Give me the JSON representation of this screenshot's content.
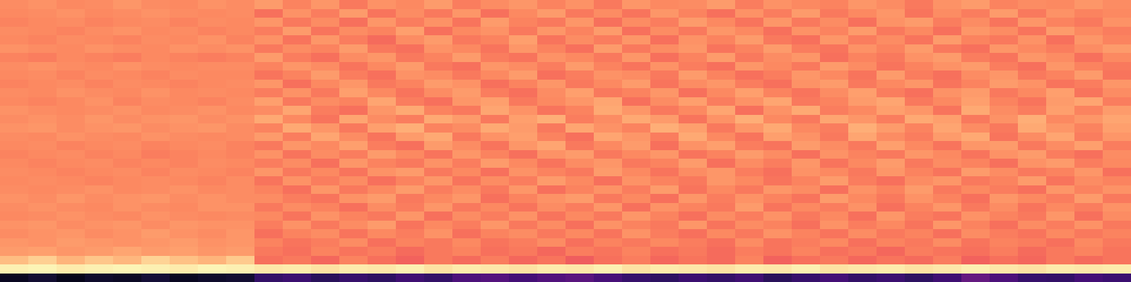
{
  "chart_data": {
    "type": "heatmap",
    "color": "magma",
    "tick_labels": false,
    "zlim": [
      0,
      1
    ],
    "z": [
      [
        0.76,
        0.77,
        0.75,
        0.76,
        0.78,
        0.76,
        0.75,
        0.77,
        0.76,
        0.79,
        0.74,
        0.78,
        0.72,
        0.77,
        0.75,
        0.79,
        0.73,
        0.76,
        0.78,
        0.74,
        0.77,
        0.72,
        0.78,
        0.75,
        0.76,
        0.79,
        0.73,
        0.77,
        0.75,
        0.74,
        0.78,
        0.76,
        0.72,
        0.77,
        0.79,
        0.74,
        0.76,
        0.75,
        0.78,
        0.76
      ],
      [
        0.75,
        0.76,
        0.77,
        0.75,
        0.76,
        0.77,
        0.76,
        0.75,
        0.76,
        0.7,
        0.77,
        0.73,
        0.79,
        0.71,
        0.76,
        0.72,
        0.78,
        0.7,
        0.75,
        0.79,
        0.72,
        0.76,
        0.71,
        0.78,
        0.74,
        0.7,
        0.77,
        0.73,
        0.79,
        0.72,
        0.75,
        0.78,
        0.71,
        0.76,
        0.73,
        0.79,
        0.72,
        0.77,
        0.74,
        0.75
      ],
      [
        0.74,
        0.75,
        0.76,
        0.74,
        0.75,
        0.76,
        0.74,
        0.76,
        0.75,
        0.78,
        0.72,
        0.76,
        0.7,
        0.78,
        0.73,
        0.77,
        0.71,
        0.79,
        0.74,
        0.72,
        0.78,
        0.7,
        0.76,
        0.73,
        0.79,
        0.75,
        0.71,
        0.78,
        0.72,
        0.76,
        0.7,
        0.77,
        0.79,
        0.73,
        0.76,
        0.71,
        0.78,
        0.74,
        0.72,
        0.77
      ],
      [
        0.76,
        0.75,
        0.74,
        0.76,
        0.77,
        0.75,
        0.76,
        0.74,
        0.75,
        0.73,
        0.79,
        0.71,
        0.76,
        0.74,
        0.8,
        0.7,
        0.75,
        0.77,
        0.72,
        0.78,
        0.74,
        0.79,
        0.7,
        0.76,
        0.72,
        0.78,
        0.75,
        0.7,
        0.77,
        0.74,
        0.79,
        0.72,
        0.75,
        0.7,
        0.78,
        0.76,
        0.71,
        0.79,
        0.75,
        0.73
      ],
      [
        0.75,
        0.74,
        0.76,
        0.75,
        0.74,
        0.76,
        0.75,
        0.77,
        0.74,
        0.77,
        0.71,
        0.78,
        0.73,
        0.69,
        0.76,
        0.79,
        0.72,
        0.74,
        0.8,
        0.71,
        0.76,
        0.73,
        0.78,
        0.7,
        0.77,
        0.74,
        0.79,
        0.72,
        0.7,
        0.78,
        0.73,
        0.76,
        0.71,
        0.79,
        0.74,
        0.72,
        0.77,
        0.7,
        0.78,
        0.74
      ],
      [
        0.77,
        0.76,
        0.75,
        0.77,
        0.76,
        0.75,
        0.77,
        0.76,
        0.77,
        0.72,
        0.76,
        0.74,
        0.79,
        0.72,
        0.7,
        0.77,
        0.75,
        0.71,
        0.78,
        0.74,
        0.7,
        0.79,
        0.72,
        0.76,
        0.78,
        0.71,
        0.74,
        0.79,
        0.73,
        0.71,
        0.77,
        0.74,
        0.79,
        0.72,
        0.7,
        0.78,
        0.75,
        0.73,
        0.76,
        0.79
      ],
      [
        0.74,
        0.73,
        0.75,
        0.74,
        0.73,
        0.75,
        0.74,
        0.73,
        0.74,
        0.79,
        0.73,
        0.7,
        0.76,
        0.78,
        0.72,
        0.74,
        0.79,
        0.73,
        0.71,
        0.77,
        0.75,
        0.72,
        0.78,
        0.7,
        0.74,
        0.79,
        0.72,
        0.76,
        0.78,
        0.7,
        0.74,
        0.72,
        0.77,
        0.79,
        0.73,
        0.71,
        0.78,
        0.76,
        0.7,
        0.75
      ],
      [
        0.76,
        0.77,
        0.76,
        0.75,
        0.77,
        0.76,
        0.75,
        0.76,
        0.76,
        0.74,
        0.78,
        0.76,
        0.71,
        0.75,
        0.79,
        0.72,
        0.7,
        0.78,
        0.76,
        0.73,
        0.79,
        0.74,
        0.71,
        0.77,
        0.73,
        0.7,
        0.78,
        0.75,
        0.72,
        0.79,
        0.76,
        0.71,
        0.74,
        0.77,
        0.79,
        0.73,
        0.7,
        0.78,
        0.74,
        0.72
      ],
      [
        0.75,
        0.76,
        0.74,
        0.76,
        0.75,
        0.74,
        0.76,
        0.75,
        0.75,
        0.71,
        0.74,
        0.79,
        0.73,
        0.7,
        0.77,
        0.76,
        0.72,
        0.75,
        0.79,
        0.7,
        0.73,
        0.77,
        0.76,
        0.72,
        0.79,
        0.74,
        0.7,
        0.73,
        0.78,
        0.75,
        0.71,
        0.79,
        0.73,
        0.7,
        0.76,
        0.78,
        0.72,
        0.74,
        0.79,
        0.71
      ],
      [
        0.74,
        0.75,
        0.76,
        0.74,
        0.76,
        0.75,
        0.74,
        0.75,
        0.76,
        0.78,
        0.7,
        0.75,
        0.78,
        0.72,
        0.74,
        0.79,
        0.77,
        0.7,
        0.74,
        0.78,
        0.72,
        0.75,
        0.79,
        0.71,
        0.76,
        0.78,
        0.73,
        0.7,
        0.77,
        0.79,
        0.72,
        0.75,
        0.78,
        0.71,
        0.74,
        0.79,
        0.77,
        0.71,
        0.73,
        0.78
      ],
      [
        0.76,
        0.75,
        0.77,
        0.76,
        0.75,
        0.77,
        0.75,
        0.76,
        0.75,
        0.73,
        0.77,
        0.72,
        0.8,
        0.75,
        0.71,
        0.76,
        0.79,
        0.73,
        0.7,
        0.76,
        0.8,
        0.72,
        0.74,
        0.78,
        0.7,
        0.75,
        0.8,
        0.74,
        0.71,
        0.76,
        0.8,
        0.73,
        0.7,
        0.77,
        0.79,
        0.72,
        0.75,
        0.8,
        0.71,
        0.76
      ],
      [
        0.75,
        0.74,
        0.75,
        0.77,
        0.74,
        0.76,
        0.75,
        0.74,
        0.76,
        0.8,
        0.72,
        0.76,
        0.74,
        0.81,
        0.73,
        0.7,
        0.78,
        0.8,
        0.72,
        0.75,
        0.78,
        0.81,
        0.7,
        0.76,
        0.8,
        0.73,
        0.77,
        0.81,
        0.72,
        0.74,
        0.79,
        0.81,
        0.72,
        0.75,
        0.8,
        0.74,
        0.71,
        0.79,
        0.81,
        0.73
      ],
      [
        0.77,
        0.76,
        0.75,
        0.76,
        0.77,
        0.75,
        0.76,
        0.77,
        0.75,
        0.76,
        0.81,
        0.73,
        0.7,
        0.78,
        0.82,
        0.74,
        0.72,
        0.81,
        0.77,
        0.71,
        0.74,
        0.82,
        0.78,
        0.72,
        0.75,
        0.81,
        0.7,
        0.77,
        0.82,
        0.73,
        0.75,
        0.8,
        0.78,
        0.71,
        0.82,
        0.76,
        0.73,
        0.8,
        0.74,
        0.79
      ],
      [
        0.76,
        0.77,
        0.76,
        0.78,
        0.76,
        0.77,
        0.78,
        0.76,
        0.77,
        0.82,
        0.75,
        0.71,
        0.81,
        0.76,
        0.73,
        0.82,
        0.79,
        0.72,
        0.8,
        0.83,
        0.73,
        0.76,
        0.82,
        0.79,
        0.71,
        0.77,
        0.83,
        0.75,
        0.72,
        0.81,
        0.78,
        0.73,
        0.82,
        0.8,
        0.72,
        0.77,
        0.83,
        0.75,
        0.78,
        0.81
      ],
      [
        0.77,
        0.78,
        0.76,
        0.77,
        0.78,
        0.76,
        0.77,
        0.78,
        0.76,
        0.74,
        0.82,
        0.78,
        0.72,
        0.8,
        0.83,
        0.74,
        0.76,
        0.82,
        0.79,
        0.72,
        0.81,
        0.77,
        0.74,
        0.83,
        0.8,
        0.72,
        0.78,
        0.82,
        0.75,
        0.73,
        0.83,
        0.79,
        0.74,
        0.81,
        0.76,
        0.72,
        0.82,
        0.78,
        0.74,
        0.8
      ],
      [
        0.76,
        0.75,
        0.77,
        0.76,
        0.75,
        0.77,
        0.76,
        0.75,
        0.76,
        0.79,
        0.73,
        0.81,
        0.76,
        0.71,
        0.79,
        0.82,
        0.72,
        0.77,
        0.8,
        0.74,
        0.7,
        0.81,
        0.78,
        0.73,
        0.82,
        0.75,
        0.71,
        0.8,
        0.77,
        0.72,
        0.81,
        0.76,
        0.73,
        0.79,
        0.82,
        0.71,
        0.76,
        0.81,
        0.73,
        0.78
      ],
      [
        0.75,
        0.76,
        0.74,
        0.75,
        0.76,
        0.74,
        0.75,
        0.76,
        0.74,
        0.72,
        0.78,
        0.75,
        0.8,
        0.73,
        0.7,
        0.79,
        0.76,
        0.71,
        0.78,
        0.81,
        0.72,
        0.75,
        0.79,
        0.7,
        0.77,
        0.8,
        0.73,
        0.71,
        0.79,
        0.76,
        0.72,
        0.8,
        0.75,
        0.71,
        0.78,
        0.79,
        0.72,
        0.76,
        0.8,
        0.73
      ],
      [
        0.74,
        0.75,
        0.76,
        0.74,
        0.75,
        0.73,
        0.74,
        0.75,
        0.74,
        0.77,
        0.71,
        0.76,
        0.73,
        0.79,
        0.75,
        0.71,
        0.78,
        0.74,
        0.7,
        0.77,
        0.79,
        0.72,
        0.75,
        0.78,
        0.71,
        0.74,
        0.79,
        0.76,
        0.7,
        0.77,
        0.74,
        0.72,
        0.78,
        0.75,
        0.71,
        0.77,
        0.79,
        0.73,
        0.7,
        0.76
      ],
      [
        0.75,
        0.74,
        0.75,
        0.76,
        0.74,
        0.75,
        0.74,
        0.76,
        0.75,
        0.73,
        0.76,
        0.7,
        0.78,
        0.74,
        0.72,
        0.77,
        0.73,
        0.79,
        0.75,
        0.71,
        0.76,
        0.78,
        0.72,
        0.74,
        0.79,
        0.7,
        0.76,
        0.73,
        0.78,
        0.71,
        0.75,
        0.79,
        0.72,
        0.76,
        0.74,
        0.7,
        0.77,
        0.79,
        0.73,
        0.75
      ],
      [
        0.76,
        0.75,
        0.74,
        0.75,
        0.76,
        0.74,
        0.76,
        0.75,
        0.74,
        0.78,
        0.72,
        0.75,
        0.71,
        0.77,
        0.79,
        0.72,
        0.75,
        0.7,
        0.77,
        0.74,
        0.72,
        0.79,
        0.75,
        0.71,
        0.76,
        0.78,
        0.73,
        0.7,
        0.77,
        0.75,
        0.72,
        0.78,
        0.74,
        0.71,
        0.79,
        0.76,
        0.72,
        0.74,
        0.78,
        0.7
      ],
      [
        0.75,
        0.76,
        0.75,
        0.74,
        0.75,
        0.76,
        0.75,
        0.74,
        0.76,
        0.71,
        0.77,
        0.73,
        0.76,
        0.7,
        0.74,
        0.78,
        0.71,
        0.76,
        0.73,
        0.79,
        0.75,
        0.7,
        0.77,
        0.74,
        0.72,
        0.78,
        0.75,
        0.71,
        0.74,
        0.79,
        0.73,
        0.7,
        0.76,
        0.78,
        0.72,
        0.74,
        0.79,
        0.71,
        0.76,
        0.74
      ],
      [
        0.76,
        0.75,
        0.76,
        0.77,
        0.75,
        0.76,
        0.77,
        0.75,
        0.76,
        0.74,
        0.7,
        0.78,
        0.72,
        0.75,
        0.79,
        0.73,
        0.76,
        0.72,
        0.78,
        0.7,
        0.74,
        0.77,
        0.73,
        0.79,
        0.71,
        0.75,
        0.72,
        0.78,
        0.76,
        0.7,
        0.77,
        0.74,
        0.79,
        0.72,
        0.75,
        0.73,
        0.7,
        0.78,
        0.74,
        0.77
      ],
      [
        0.77,
        0.76,
        0.78,
        0.76,
        0.77,
        0.78,
        0.76,
        0.77,
        0.76,
        0.76,
        0.73,
        0.71,
        0.77,
        0.79,
        0.72,
        0.75,
        0.78,
        0.7,
        0.74,
        0.77,
        0.79,
        0.72,
        0.75,
        0.7,
        0.78,
        0.73,
        0.77,
        0.74,
        0.71,
        0.79,
        0.75,
        0.72,
        0.77,
        0.74,
        0.7,
        0.78,
        0.75,
        0.73,
        0.79,
        0.72
      ],
      [
        0.76,
        0.77,
        0.76,
        0.75,
        0.77,
        0.76,
        0.75,
        0.77,
        0.77,
        0.72,
        0.76,
        0.74,
        0.7,
        0.76,
        0.73,
        0.78,
        0.72,
        0.75,
        0.71,
        0.76,
        0.73,
        0.78,
        0.7,
        0.77,
        0.74,
        0.72,
        0.79,
        0.71,
        0.75,
        0.73,
        0.77,
        0.7,
        0.74,
        0.78,
        0.72,
        0.76,
        0.71,
        0.75,
        0.73,
        0.77
      ],
      [
        0.75,
        0.76,
        0.77,
        0.76,
        0.75,
        0.77,
        0.76,
        0.75,
        0.76,
        0.75,
        0.71,
        0.77,
        0.74,
        0.72,
        0.78,
        0.7,
        0.76,
        0.73,
        0.77,
        0.71,
        0.75,
        0.72,
        0.78,
        0.74,
        0.7,
        0.76,
        0.73,
        0.77,
        0.72,
        0.75,
        0.7,
        0.78,
        0.73,
        0.71,
        0.77,
        0.74,
        0.72,
        0.78,
        0.7,
        0.76
      ],
      [
        0.77,
        0.78,
        0.76,
        0.77,
        0.78,
        0.76,
        0.78,
        0.77,
        0.77,
        0.73,
        0.77,
        0.72,
        0.76,
        0.79,
        0.71,
        0.75,
        0.73,
        0.78,
        0.72,
        0.76,
        0.7,
        0.77,
        0.74,
        0.72,
        0.78,
        0.71,
        0.76,
        0.74,
        0.7,
        0.77,
        0.73,
        0.75,
        0.71,
        0.78,
        0.74,
        0.7,
        0.76,
        0.73,
        0.77,
        0.72
      ],
      [
        0.76,
        0.77,
        0.78,
        0.76,
        0.77,
        0.79,
        0.77,
        0.76,
        0.78,
        0.7,
        0.74,
        0.76,
        0.71,
        0.75,
        0.73,
        0.77,
        0.7,
        0.74,
        0.76,
        0.72,
        0.75,
        0.71,
        0.77,
        0.73,
        0.7,
        0.75,
        0.72,
        0.77,
        0.74,
        0.71,
        0.76,
        0.72,
        0.74,
        0.7,
        0.76,
        0.73,
        0.71,
        0.75,
        0.72,
        0.74
      ],
      [
        0.78,
        0.77,
        0.79,
        0.78,
        0.77,
        0.78,
        0.79,
        0.77,
        0.78,
        0.74,
        0.71,
        0.73,
        0.76,
        0.7,
        0.74,
        0.72,
        0.75,
        0.71,
        0.73,
        0.76,
        0.7,
        0.74,
        0.72,
        0.75,
        0.73,
        0.7,
        0.76,
        0.71,
        0.73,
        0.75,
        0.7,
        0.74,
        0.72,
        0.76,
        0.71,
        0.74,
        0.73,
        0.7,
        0.75,
        0.72
      ],
      [
        0.79,
        0.8,
        0.78,
        0.79,
        0.81,
        0.79,
        0.8,
        0.78,
        0.79,
        0.72,
        0.7,
        0.74,
        0.71,
        0.73,
        0.69,
        0.72,
        0.74,
        0.7,
        0.72,
        0.68,
        0.73,
        0.71,
        0.74,
        0.7,
        0.72,
        0.69,
        0.73,
        0.71,
        0.74,
        0.7,
        0.72,
        0.68,
        0.73,
        0.71,
        0.7,
        0.73,
        0.69,
        0.72,
        0.74,
        0.71
      ],
      [
        0.86,
        0.9,
        0.84,
        0.88,
        0.85,
        0.91,
        0.87,
        0.84,
        0.89,
        0.7,
        0.72,
        0.68,
        0.74,
        0.7,
        0.67,
        0.72,
        0.69,
        0.73,
        0.68,
        0.71,
        0.66,
        0.7,
        0.73,
        0.68,
        0.71,
        0.69,
        0.74,
        0.67,
        0.7,
        0.72,
        0.68,
        0.71,
        0.69,
        0.73,
        0.67,
        0.7,
        0.68,
        0.72,
        0.69,
        0.71
      ],
      [
        0.97,
        0.98,
        0.96,
        0.97,
        0.98,
        0.97,
        0.96,
        0.98,
        0.97,
        0.95,
        0.96,
        0.94,
        0.96,
        0.95,
        0.97,
        0.94,
        0.96,
        0.95,
        0.94,
        0.96,
        0.95,
        0.97,
        0.94,
        0.96,
        0.95,
        0.94,
        0.96,
        0.95,
        0.97,
        0.94,
        0.95,
        0.96,
        0.94,
        0.95,
        0.97,
        0.95,
        0.94,
        0.96,
        0.95,
        0.96
      ],
      [
        0.06,
        0.09,
        0.05,
        0.08,
        0.07,
        0.1,
        0.06,
        0.08,
        0.09,
        0.18,
        0.2,
        0.16,
        0.19,
        0.17,
        0.21,
        0.18,
        0.24,
        0.26,
        0.22,
        0.25,
        0.27,
        0.23,
        0.19,
        0.17,
        0.2,
        0.18,
        0.21,
        0.16,
        0.19,
        0.22,
        0.18,
        0.2,
        0.17,
        0.21,
        0.3,
        0.24,
        0.19,
        0.18,
        0.22,
        0.2
      ]
    ]
  }
}
